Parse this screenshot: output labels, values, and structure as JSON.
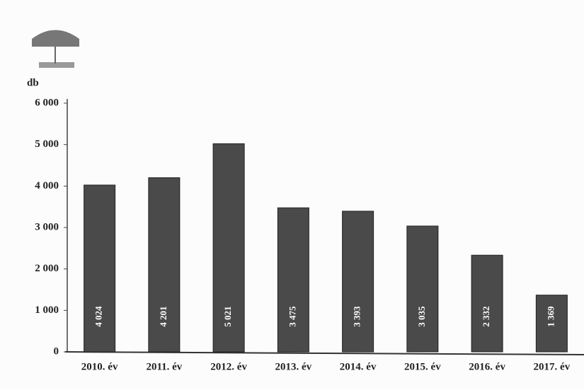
{
  "chart_data": {
    "type": "bar",
    "y_label": "db",
    "categories": [
      "2010. év",
      "2011. év",
      "2012. év",
      "2013. év",
      "2014. év",
      "2015. év",
      "2016. év",
      "2017. év"
    ],
    "values": [
      4024,
      4201,
      5021,
      3475,
      3393,
      3035,
      2332,
      1369
    ],
    "value_labels": [
      "4 024",
      "4 201",
      "5 021",
      "3 475",
      "3 393",
      "3 035",
      "2 332",
      "1 369"
    ],
    "color": "#4a4a4a",
    "ylim": [
      0,
      6000
    ],
    "yticks": [
      0,
      {
        "value": 1000,
        "label": "1 000"
      },
      {
        "value": 2000,
        "label": "2 000"
      },
      {
        "value": 3000,
        "label": "3 000"
      },
      {
        "value": 4000,
        "label": "4 000"
      },
      {
        "value": 5000,
        "label": "5 000"
      },
      {
        "value": 6000,
        "label": "6 000"
      }
    ],
    "grid": false
  }
}
